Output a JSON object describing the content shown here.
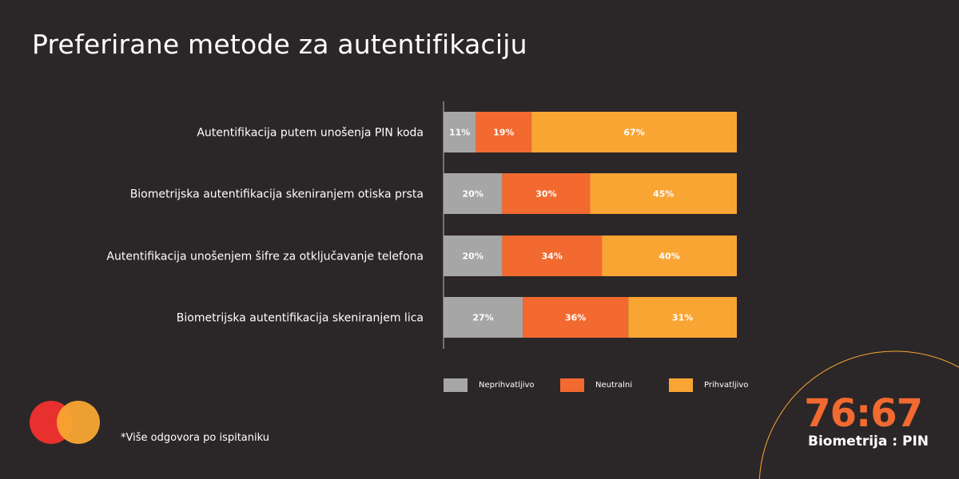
{
  "title": "Preferirane metode za autentifikaciju",
  "note": "*Više odgovora po ispitaniku",
  "highlight": {
    "ratio": "76:67",
    "label": "Biometrija : PIN"
  },
  "colors": {
    "background": "#2b2728",
    "neprihvatljivo": "#a6a6a6",
    "neutralni": "#f26a30",
    "prihvatljivo": "#f9a533",
    "logo_red": "#e8302f",
    "logo_yellow": "#f9a533"
  },
  "chart_data": {
    "type": "bar",
    "orientation": "horizontal-stacked",
    "categories": [
      "Autentifikacija putem unošenja PIN koda",
      "Biometrijska autentifikacija skeniranjem otiska prsta",
      "Autentifikacija unošenjem šifre za otključavanje telefona",
      "Biometrijska autentifikacija skeniranjem lica"
    ],
    "series": [
      {
        "name": "Neprihvatljivo",
        "values": [
          11,
          20,
          20,
          27
        ],
        "labels": [
          "11%",
          "20%",
          "20%",
          "27%"
        ]
      },
      {
        "name": "Neutralni",
        "values": [
          19,
          30,
          34,
          36
        ],
        "labels": [
          "19%",
          "30%",
          "34%",
          "36%"
        ]
      },
      {
        "name": "Prihvatljivo",
        "values": [
          67,
          45,
          40,
          31
        ],
        "labels": [
          "67%",
          "45%",
          "40%",
          "31%"
        ]
      }
    ],
    "legend": "bottom",
    "grid": false
  }
}
